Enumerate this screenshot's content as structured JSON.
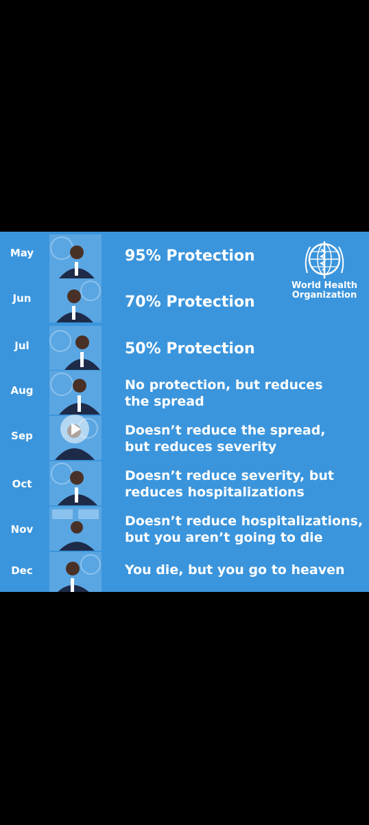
{
  "logo": {
    "line1": "World Health",
    "line2": "Organization",
    "icon": "who-emblem-icon"
  },
  "rows": [
    {
      "month": "May",
      "line1": "95% Protection",
      "line2": ""
    },
    {
      "month": "Jun",
      "line1": "70% Protection",
      "line2": ""
    },
    {
      "month": "Jul",
      "line1": "50% Protection",
      "line2": ""
    },
    {
      "month": "Aug",
      "line1": "No protection, but reduces",
      "line2": "the spread"
    },
    {
      "month": "Sep",
      "line1": "Doesn’t reduce the spread,",
      "line2": "but reduces severity"
    },
    {
      "month": "Oct",
      "line1": "Doesn’t reduce severity, but",
      "line2": "reduces hospitalizations"
    },
    {
      "month": "Nov",
      "line1": "Doesn’t reduce hospitalizations,",
      "line2": "but you aren’t going to die"
    },
    {
      "month": "Dec",
      "line1": "You die, but you go to heaven",
      "line2": ""
    }
  ],
  "colors": {
    "panel": "#3b95dc",
    "background": "#000000",
    "text": "#ffffff"
  }
}
